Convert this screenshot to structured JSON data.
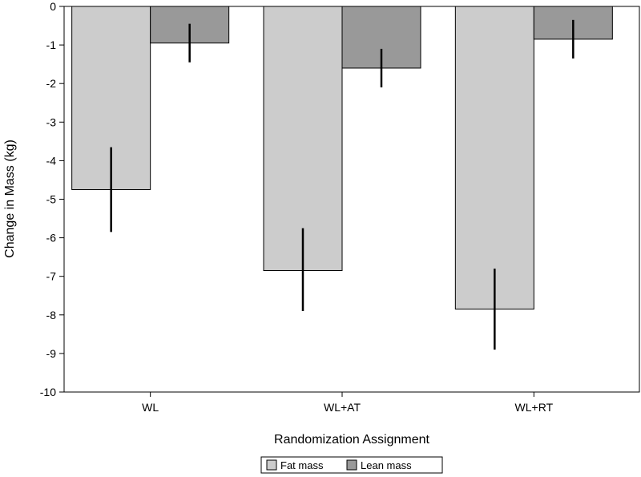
{
  "chart_data": {
    "type": "bar",
    "title": "",
    "xlabel": "Randomization Assignment",
    "ylabel": "Change in Mass (kg)",
    "ylim": [
      -10,
      0
    ],
    "yticks": [
      0,
      -1,
      -2,
      -3,
      -4,
      -5,
      -6,
      -7,
      -8,
      -9,
      -10
    ],
    "grid": false,
    "legend_position": "bottom-center",
    "categories": [
      "WL",
      "WL+AT",
      "WL+RT"
    ],
    "series": [
      {
        "name": "Fat mass",
        "color": "#cccccc",
        "values": [
          -4.75,
          -6.85,
          -7.85
        ],
        "error_low": [
          -5.85,
          -7.9,
          -8.9
        ],
        "error_high": [
          -3.65,
          -5.75,
          -6.8
        ]
      },
      {
        "name": "Lean mass",
        "color": "#999999",
        "values": [
          -0.95,
          -1.6,
          -0.85
        ],
        "error_low": [
          -1.45,
          -2.1,
          -1.35
        ],
        "error_high": [
          -0.45,
          -1.1,
          -0.35
        ]
      }
    ]
  }
}
